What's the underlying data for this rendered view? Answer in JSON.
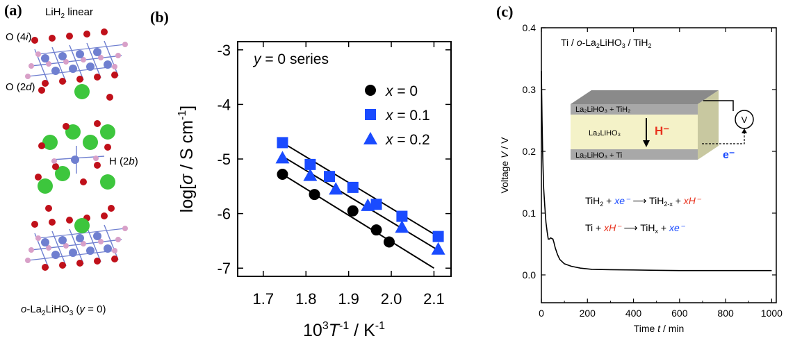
{
  "panel_a": {
    "label": "(a)",
    "linear_label": "LiH",
    "linear_sub": "2",
    "linear_suffix": " linear",
    "o4i_pre": "O (4",
    "o4i_it": "i",
    "o4i_post": ")",
    "o2d_pre": "O (2",
    "o2d_it": "d",
    "o2d_post": ")",
    "h2b_pre": "H (2",
    "h2b_it": "b",
    "h2b_post": ")",
    "caption_o": "o",
    "caption_rest1": "-La",
    "caption_sub2": "2",
    "caption_rest2": "LiHO",
    "caption_sub3": "3",
    "caption_y": " (",
    "caption_yit": "y",
    "caption_tail": " = 0)",
    "colors": {
      "oxygen": "#c0101a",
      "la": "#3dc63d",
      "li": "#6f7fd0",
      "h": "#d8a0c8"
    }
  },
  "panel_b": {
    "label": "(b)",
    "series_title_it": "y",
    "series_title_rest": " = 0 series",
    "ylabel_pre": "log[",
    "ylabel_sigma": "σ",
    "ylabel_post": " / S cm",
    "ylabel_sup": "-1",
    "ylabel_end": "]",
    "xlabel_pre": "10",
    "xlabel_sup3": "3",
    "xlabel_T": "T",
    "xlabel_sup": "-1",
    "xlabel_post": " / K",
    "xlabel_sup2": "-1"
  },
  "chart_data": [
    {
      "type": "scatter",
      "title": "",
      "xlabel": "10^3 T^-1 / K^-1",
      "ylabel": "log[σ / S cm^-1]",
      "xlim": [
        1.64,
        2.14
      ],
      "ylim": [
        -7.15,
        -2.85
      ],
      "xticks": [
        "1.7",
        "1.8",
        "1.9",
        "2.0",
        "2.1"
      ],
      "xtick_values": [
        1.7,
        1.8,
        1.9,
        2.0,
        2.1
      ],
      "yticks": [
        "-3",
        "-4",
        "-5",
        "-6",
        "-7"
      ],
      "ytick_values": [
        -3,
        -4,
        -5,
        -6,
        -7
      ],
      "legend_placement": "top-right",
      "series": [
        {
          "name": "x = 0",
          "marker": "circle",
          "color": "#000000",
          "x": [
            1.745,
            1.82,
            1.91,
            1.965,
            1.995
          ],
          "y": [
            -5.28,
            -5.65,
            -5.95,
            -6.3,
            -6.52
          ],
          "fit": [
            [
              1.745,
              -5.28
            ],
            [
              2.1,
              -7.0
            ]
          ]
        },
        {
          "name": "x = 0.1",
          "marker": "square",
          "color": "#1a4bff",
          "x": [
            1.745,
            1.81,
            1.855,
            1.91,
            1.965,
            2.025,
            2.11
          ],
          "y": [
            -4.7,
            -5.1,
            -5.32,
            -5.52,
            -5.83,
            -6.05,
            -6.42
          ],
          "fit": [
            [
              1.745,
              -4.7
            ],
            [
              2.12,
              -6.47
            ]
          ]
        },
        {
          "name": "x = 0.2",
          "marker": "triangle",
          "color": "#1a4bff",
          "x": [
            1.745,
            1.81,
            1.87,
            1.945,
            2.025,
            2.11
          ],
          "y": [
            -4.98,
            -5.3,
            -5.55,
            -5.85,
            -6.25,
            -6.65
          ],
          "fit": [
            [
              1.745,
              -4.95
            ],
            [
              2.12,
              -6.72
            ]
          ]
        }
      ]
    },
    {
      "type": "line",
      "title": "",
      "xlabel": "Time t / min",
      "ylabel": "Voltage V / V",
      "xlim": [
        0,
        1020
      ],
      "ylim": [
        -0.045,
        0.4
      ],
      "xticks": [
        "0",
        "200",
        "400",
        "600",
        "800",
        "1000"
      ],
      "xtick_values": [
        0,
        200,
        400,
        600,
        800,
        1000
      ],
      "yticks": [
        "0.4",
        "0.3",
        "0.2",
        "0.1",
        "0.0"
      ],
      "ytick_values": [
        0.4,
        0.3,
        0.2,
        0.1,
        0.0
      ],
      "series": [
        {
          "name": "",
          "x": [
            0,
            3,
            6,
            10,
            15,
            20,
            25,
            30,
            35,
            40,
            45,
            50,
            55,
            60,
            70,
            80,
            100,
            130,
            170,
            220,
            300,
            400,
            500,
            600,
            700,
            800,
            900,
            1000
          ],
          "y": [
            0.33,
            0.25,
            0.19,
            0.14,
            0.11,
            0.085,
            0.07,
            0.058,
            0.058,
            0.06,
            0.059,
            0.058,
            0.052,
            0.044,
            0.033,
            0.025,
            0.018,
            0.014,
            0.011,
            0.009,
            0.0085,
            0.008,
            0.0075,
            0.007,
            0.007,
            0.007,
            0.007,
            0.007
          ]
        }
      ]
    }
  ],
  "panel_c": {
    "label": "(c)",
    "header_pre": "Ti / ",
    "header_o": "o",
    "header_mid": "-La",
    "header_sub2": "2",
    "header_mid2": "LiHO",
    "header_sub3": "3",
    "header_post": " / TiH",
    "header_sub4": "2",
    "ylabel_pre": "Voltage ",
    "ylabel_V": "V",
    "ylabel_post": " / V",
    "xlabel_pre": "Time ",
    "xlabel_t": "t",
    "xlabel_post": " / min",
    "layer_top": "La₂LiHO₃ + TiH₂",
    "layer_mid": "La₂LiHO₃",
    "layer_bot": "La₂LiHO₃ + Ti",
    "hydride_label": "H⁻",
    "electron_label": "e⁻",
    "voltmeter": "V",
    "eq1_a": "TiH",
    "eq1_a_sub": "2",
    "eq1_b": " + ",
    "eq1_c": "xe⁻",
    "eq1_arrow": " ⟶ ",
    "eq1_d": "TiH",
    "eq1_d_sub": "2-x",
    "eq1_e": " + ",
    "eq1_f": "xH⁻",
    "eq2_a": "Ti + ",
    "eq2_b": "xH⁻",
    "eq2_arrow": " ⟶ ",
    "eq2_c": "TiH",
    "eq2_c_sub": "x",
    "eq2_d": " + ",
    "eq2_e": "xe⁻",
    "colors": {
      "hydride": "#e8321e",
      "electron": "#1a4bff",
      "yellow": "#f4f2c8",
      "grey": "#a8a8a8"
    }
  }
}
